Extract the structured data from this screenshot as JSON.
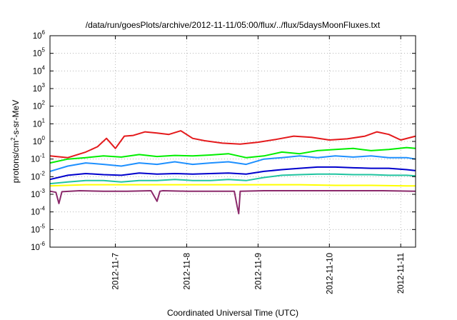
{
  "chart_data": {
    "type": "line",
    "title": "/data/run/goesPlots/archive/2012-11-11/05:00/flux/../flux/5daysMoonFluxes.txt",
    "xlabel": "Coordinated Universal Time (UTC)",
    "ylabel": {
      "prefix": "protons/cm",
      "sup": "2",
      "suffix": "-s-sr-MeV"
    },
    "y_scale": "log",
    "ylim": [
      1e-06,
      1000000.0
    ],
    "y_ticks": [
      {
        "exp": "-6"
      },
      {
        "exp": "-5"
      },
      {
        "exp": "-4"
      },
      {
        "exp": "-3"
      },
      {
        "exp": "-2"
      },
      {
        "exp": "-1"
      },
      {
        "exp": "0"
      },
      {
        "exp": "1"
      },
      {
        "exp": "2"
      },
      {
        "exp": "3"
      },
      {
        "exp": "4"
      },
      {
        "exp": "5"
      },
      {
        "exp": "6"
      }
    ],
    "xlim": [
      "2012-11-06T02:00",
      "2012-11-11T05:00"
    ],
    "x_ticks": [
      "2012-11-7",
      "2012-11-8",
      "2012-11-9",
      "2012-11-10",
      "2012-11-11"
    ],
    "grid": true,
    "series": [
      {
        "color": "#e41a1c",
        "x": [
          "2012-11-06T02:00",
          "2012-11-06T08:00",
          "2012-11-06T14:00",
          "2012-11-06T18:00",
          "2012-11-06T21:00",
          "2012-11-07T00:00",
          "2012-11-07T03:00",
          "2012-11-07T06:00",
          "2012-11-07T10:00",
          "2012-11-07T14:00",
          "2012-11-07T18:00",
          "2012-11-07T22:00",
          "2012-11-08T02:00",
          "2012-11-08T06:00",
          "2012-11-08T12:00",
          "2012-11-08T18:00",
          "2012-11-09T00:00",
          "2012-11-09T06:00",
          "2012-11-09T12:00",
          "2012-11-09T18:00",
          "2012-11-10T00:00",
          "2012-11-10T06:00",
          "2012-11-10T12:00",
          "2012-11-10T16:00",
          "2012-11-10T20:00",
          "2012-11-11T00:00",
          "2012-11-11T05:00"
        ],
        "y": [
          0.15,
          0.12,
          0.25,
          0.5,
          1.5,
          0.4,
          2.0,
          2.2,
          3.5,
          3.0,
          2.5,
          4.0,
          1.5,
          1.1,
          0.8,
          0.7,
          0.9,
          1.3,
          2.0,
          1.7,
          1.2,
          1.4,
          2.0,
          3.5,
          2.5,
          1.2,
          2.0
        ]
      },
      {
        "color": "#00ee00",
        "x": [
          "2012-11-06T02:00",
          "2012-11-06T08:00",
          "2012-11-06T14:00",
          "2012-11-06T20:00",
          "2012-11-07T02:00",
          "2012-11-07T08:00",
          "2012-11-07T14:00",
          "2012-11-07T20:00",
          "2012-11-08T02:00",
          "2012-11-08T08:00",
          "2012-11-08T14:00",
          "2012-11-08T20:00",
          "2012-11-09T02:00",
          "2012-11-09T08:00",
          "2012-11-09T14:00",
          "2012-11-09T20:00",
          "2012-11-10T02:00",
          "2012-11-10T08:00",
          "2012-11-10T14:00",
          "2012-11-10T20:00",
          "2012-11-11T02:00",
          "2012-11-11T05:00"
        ],
        "y": [
          0.06,
          0.1,
          0.12,
          0.15,
          0.13,
          0.18,
          0.14,
          0.16,
          0.15,
          0.17,
          0.2,
          0.12,
          0.15,
          0.25,
          0.2,
          0.3,
          0.35,
          0.4,
          0.3,
          0.35,
          0.45,
          0.4
        ]
      },
      {
        "color": "#1e90ff",
        "x": [
          "2012-11-06T02:00",
          "2012-11-06T08:00",
          "2012-11-06T14:00",
          "2012-11-06T20:00",
          "2012-11-07T02:00",
          "2012-11-07T08:00",
          "2012-11-07T14:00",
          "2012-11-07T20:00",
          "2012-11-08T02:00",
          "2012-11-08T08:00",
          "2012-11-08T14:00",
          "2012-11-08T20:00",
          "2012-11-09T02:00",
          "2012-11-09T08:00",
          "2012-11-09T14:00",
          "2012-11-09T20:00",
          "2012-11-10T02:00",
          "2012-11-10T08:00",
          "2012-11-10T14:00",
          "2012-11-10T20:00",
          "2012-11-11T02:00",
          "2012-11-11T05:00"
        ],
        "y": [
          0.02,
          0.04,
          0.06,
          0.05,
          0.04,
          0.06,
          0.05,
          0.07,
          0.05,
          0.06,
          0.07,
          0.05,
          0.1,
          0.12,
          0.15,
          0.12,
          0.15,
          0.13,
          0.15,
          0.12,
          0.12,
          0.1
        ]
      },
      {
        "color": "#0000cd",
        "x": [
          "2012-11-06T02:00",
          "2012-11-06T08:00",
          "2012-11-06T14:00",
          "2012-11-06T20:00",
          "2012-11-07T02:00",
          "2012-11-07T08:00",
          "2012-11-07T14:00",
          "2012-11-07T20:00",
          "2012-11-08T02:00",
          "2012-11-08T08:00",
          "2012-11-08T14:00",
          "2012-11-08T20:00",
          "2012-11-09T02:00",
          "2012-11-09T08:00",
          "2012-11-09T14:00",
          "2012-11-09T20:00",
          "2012-11-10T02:00",
          "2012-11-10T08:00",
          "2012-11-10T14:00",
          "2012-11-10T20:00",
          "2012-11-11T02:00",
          "2012-11-11T05:00"
        ],
        "y": [
          0.007,
          0.012,
          0.015,
          0.013,
          0.012,
          0.016,
          0.014,
          0.015,
          0.014,
          0.015,
          0.016,
          0.014,
          0.02,
          0.025,
          0.03,
          0.035,
          0.035,
          0.032,
          0.03,
          0.03,
          0.025,
          0.022
        ]
      },
      {
        "color": "#20c4a0",
        "x": [
          "2012-11-06T02:00",
          "2012-11-06T08:00",
          "2012-11-06T14:00",
          "2012-11-06T20:00",
          "2012-11-07T02:00",
          "2012-11-07T08:00",
          "2012-11-07T14:00",
          "2012-11-07T20:00",
          "2012-11-08T02:00",
          "2012-11-08T08:00",
          "2012-11-08T14:00",
          "2012-11-08T20:00",
          "2012-11-09T02:00",
          "2012-11-09T08:00",
          "2012-11-09T14:00",
          "2012-11-09T20:00",
          "2012-11-10T02:00",
          "2012-11-10T08:00",
          "2012-11-10T14:00",
          "2012-11-10T20:00",
          "2012-11-11T02:00",
          "2012-11-11T05:00"
        ],
        "y": [
          0.004,
          0.005,
          0.006,
          0.006,
          0.005,
          0.006,
          0.006,
          0.007,
          0.006,
          0.006,
          0.007,
          0.006,
          0.009,
          0.012,
          0.013,
          0.014,
          0.014,
          0.013,
          0.013,
          0.012,
          0.012,
          0.011
        ]
      },
      {
        "color": "#ffff00",
        "x": [
          "2012-11-06T02:00",
          "2012-11-06T14:00",
          "2012-11-07T02:00",
          "2012-11-07T14:00",
          "2012-11-08T02:00",
          "2012-11-08T14:00",
          "2012-11-09T02:00",
          "2012-11-09T14:00",
          "2012-11-10T02:00",
          "2012-11-10T14:00",
          "2012-11-11T02:00",
          "2012-11-11T05:00"
        ],
        "y": [
          0.003,
          0.0035,
          0.0035,
          0.0035,
          0.0035,
          0.0035,
          0.0035,
          0.0035,
          0.0032,
          0.0032,
          0.003,
          0.003
        ]
      },
      {
        "color": "#8b2a6b",
        "x": [
          "2012-11-06T02:00",
          "2012-11-06T04:00",
          "2012-11-06T05:00",
          "2012-11-06T06:00",
          "2012-11-06T12:00",
          "2012-11-06T20:00",
          "2012-11-07T04:00",
          "2012-11-07T12:00",
          "2012-11-07T14:00",
          "2012-11-07T15:00",
          "2012-11-07T16:00",
          "2012-11-08T00:00",
          "2012-11-08T08:00",
          "2012-11-08T16:00",
          "2012-11-08T17:00",
          "2012-11-08T17:30",
          "2012-11-08T18:00",
          "2012-11-09T02:00",
          "2012-11-09T12:00",
          "2012-11-09T22:00",
          "2012-11-10T08:00",
          "2012-11-10T18:00",
          "2012-11-11T05:00"
        ],
        "y": [
          0.0015,
          0.0013,
          0.0003,
          0.0014,
          0.0016,
          0.0015,
          0.0015,
          0.0016,
          0.0004,
          0.0015,
          0.0016,
          0.0015,
          0.0015,
          0.0015,
          0.0002,
          8e-05,
          0.0015,
          0.0016,
          0.0016,
          0.0016,
          0.0016,
          0.0016,
          0.0015
        ]
      }
    ]
  }
}
